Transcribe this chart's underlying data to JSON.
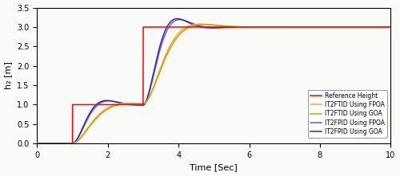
{
  "title": "",
  "xlabel": "Time [Sec]",
  "ylabel": "h₂ [m]",
  "xlim": [
    0,
    10
  ],
  "ylim": [
    0,
    3.5
  ],
  "xticks": [
    0,
    2,
    4,
    6,
    8,
    10
  ],
  "yticks": [
    0,
    0.5,
    1.0,
    1.5,
    2.0,
    2.5,
    3.0,
    3.5
  ],
  "colors": {
    "reference": "#FF0000",
    "it2ftid_fpoa": "#FFA040",
    "it2ftid_goa": "#D4A000",
    "it2fpid_fpoa": "#8855BB",
    "it2fpid_goa": "#2233AA"
  },
  "legend_labels": [
    "Reference Height",
    "IT2FTID Using FPOA",
    "IT2FTID Using GOA",
    "IT2FPID Using FPOA",
    "IT2FPID Using GOA"
  ],
  "background": "#FAFAF8",
  "figsize": [
    5.0,
    2.21
  ],
  "dpi": 100
}
